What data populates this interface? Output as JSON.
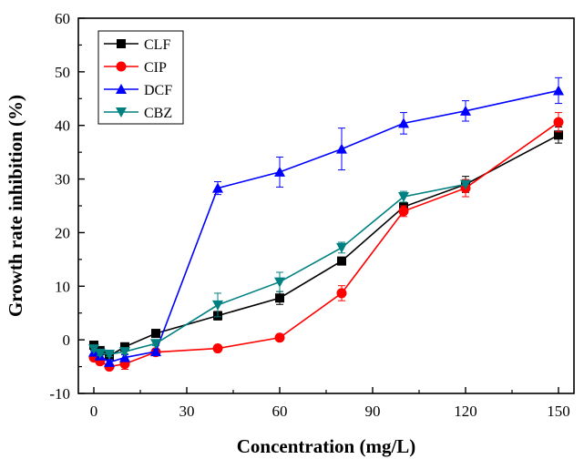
{
  "chart_data": {
    "type": "line",
    "xlabel": "Concentration (mg/L)",
    "ylabel": "Growth rate inhibition (%)",
    "xlim": [
      -5,
      155
    ],
    "ylim": [
      -10,
      60
    ],
    "x_ticks": [
      0,
      30,
      60,
      90,
      120,
      150
    ],
    "y_ticks": [
      -10,
      0,
      10,
      20,
      30,
      40,
      50,
      60
    ],
    "x_tick_labels": [
      "0",
      "30",
      "60",
      "90",
      "120",
      "150"
    ],
    "y_tick_labels": [
      "-10",
      "0",
      "10",
      "20",
      "30",
      "40",
      "50",
      "60"
    ],
    "legend_position": "top-left",
    "grid": false,
    "series": [
      {
        "name": "CLF",
        "color": "#000000",
        "marker": "square",
        "x": [
          0,
          2,
          5,
          10,
          20,
          40,
          60,
          80,
          100,
          120,
          150
        ],
        "y": [
          -1.0,
          -2.0,
          -3.0,
          -1.3,
          1.2,
          4.5,
          7.8,
          14.7,
          24.8,
          29.0,
          38.2
        ],
        "err": [
          0.3,
          0.3,
          0.4,
          0.4,
          0.4,
          0.8,
          1.2,
          0.4,
          0.8,
          1.5,
          1.5
        ]
      },
      {
        "name": "CIP",
        "color": "#ff0000",
        "marker": "circle",
        "x": [
          0,
          2,
          5,
          10,
          20,
          40,
          60,
          80,
          100,
          120,
          150
        ],
        "y": [
          -3.3,
          -4.0,
          -5.0,
          -4.5,
          -2.3,
          -1.6,
          0.4,
          8.7,
          24.0,
          28.3,
          40.6
        ],
        "err": [
          0.4,
          0.4,
          0.5,
          1.0,
          0.4,
          0.3,
          0.6,
          1.4,
          1.0,
          1.6,
          1.8
        ]
      },
      {
        "name": "DCF",
        "color": "#0000ff",
        "marker": "triangle-up",
        "x": [
          0,
          2,
          5,
          10,
          20,
          40,
          60,
          80,
          100,
          120,
          150
        ],
        "y": [
          -2.3,
          -3.0,
          -4.2,
          -3.3,
          -2.2,
          28.3,
          31.3,
          35.6,
          40.4,
          42.7,
          46.5
        ],
        "err": [
          0.4,
          0.4,
          0.5,
          0.5,
          0.4,
          1.2,
          2.8,
          3.9,
          2.0,
          1.9,
          2.4
        ]
      },
      {
        "name": "CBZ",
        "color": "#008080",
        "marker": "triangle-down",
        "x": [
          0,
          2,
          5,
          10,
          20,
          40,
          60,
          80,
          100,
          120
        ],
        "y": [
          -1.7,
          -2.5,
          -2.7,
          -2.2,
          -0.7,
          6.5,
          10.8,
          17.2,
          26.7,
          29.0
        ],
        "err": [
          0.4,
          0.4,
          0.4,
          0.4,
          0.4,
          2.2,
          1.8,
          1.0,
          1.0,
          0.0
        ]
      }
    ]
  }
}
